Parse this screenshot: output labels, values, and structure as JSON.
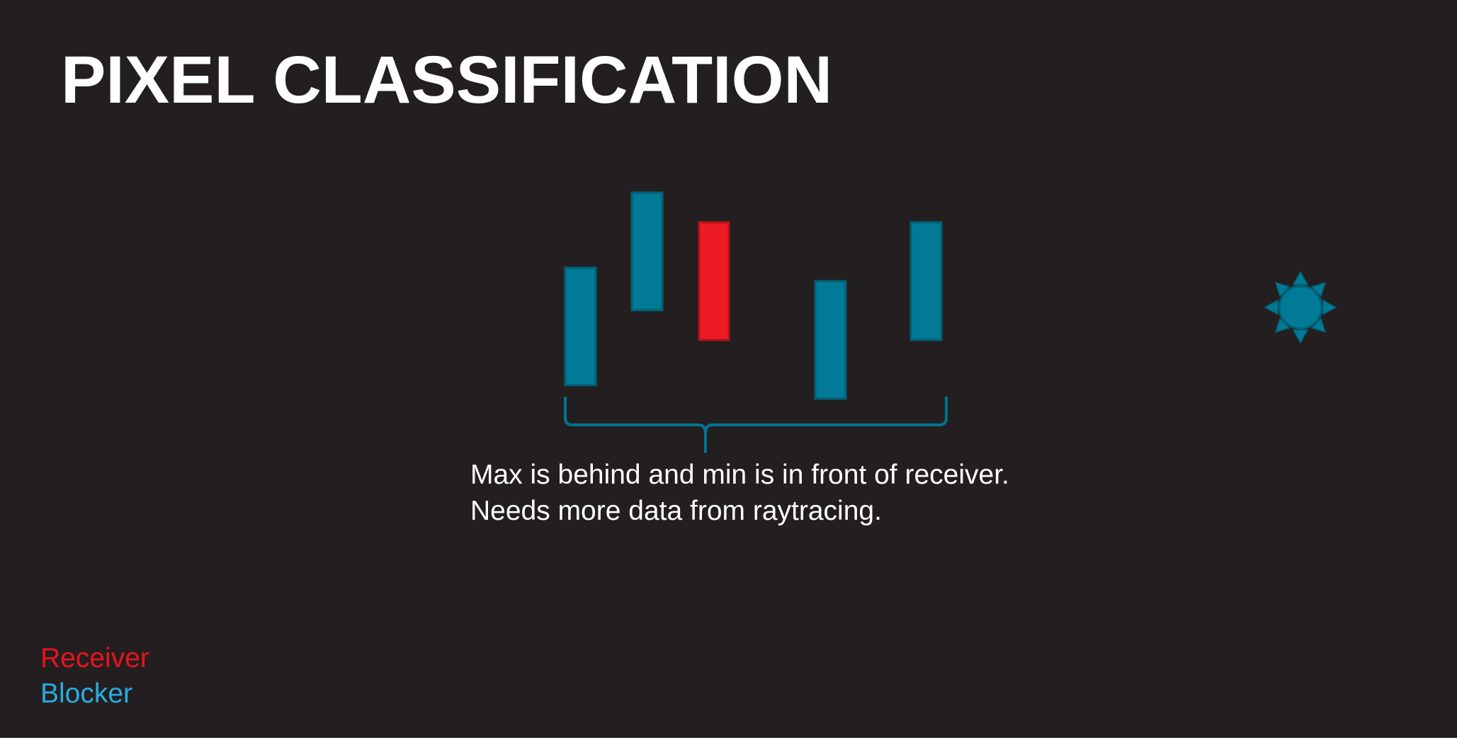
{
  "slide": {
    "title": "PIXEL CLASSIFICATION",
    "caption": {
      "line1": "Max is behind and min is in front of receiver.",
      "line2": "Needs more data from raytracing."
    },
    "legend": {
      "receiver": "Receiver",
      "blocker": "Blocker"
    }
  },
  "diagram": {
    "bars": [
      {
        "role": "blocker"
      },
      {
        "role": "blocker"
      },
      {
        "role": "receiver"
      },
      {
        "role": "blocker"
      },
      {
        "role": "blocker"
      }
    ],
    "light_source_icon": "sun-icon",
    "brace_icon": "curly-brace"
  },
  "colors": {
    "background": "#231f20",
    "blocker_fill": "#007a96",
    "blocker_stroke": "#045f75",
    "receiver_fill": "#ed1c24",
    "receiver_stroke": "#b5121a",
    "title_text": "#ffffff",
    "legend_receiver": "#e8131b",
    "legend_blocker": "#29abe2"
  }
}
